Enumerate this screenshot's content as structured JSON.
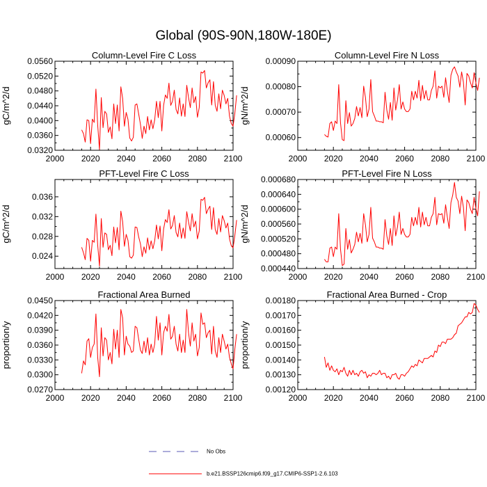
{
  "figure": {
    "title": "Global (90S-90N,180W-180E)",
    "series_color": "#ff0000",
    "obs_color": "#5a5ab4",
    "legend": [
      {
        "label": "No Obs",
        "style": "dashed"
      },
      {
        "label": "b.e21.BSSP126cmip6.f09_g17.CMIP6-SSP1-2.6.103",
        "style": "solid"
      }
    ]
  },
  "chart_data": [
    {
      "type": "line",
      "title": "Column-Level Fire C Loss",
      "ylabel": "gC/m^2/d",
      "xlabel": "",
      "xlim": [
        2000,
        2100
      ],
      "ylim": [
        0.032,
        0.056
      ],
      "xticks": [
        "2000",
        "2020",
        "2040",
        "2060",
        "2080",
        "2100"
      ],
      "yticks": [
        {
          "v": 0.032,
          "label": "0.0320"
        },
        {
          "v": 0.036,
          "label": "0.0360"
        },
        {
          "v": 0.04,
          "label": "0.0400"
        },
        {
          "v": 0.044,
          "label": "0.0440"
        },
        {
          "v": 0.048,
          "label": "0.0480"
        },
        {
          "v": 0.052,
          "label": "0.0520"
        },
        {
          "v": 0.056,
          "label": "0.0560"
        }
      ],
      "series": [
        {
          "name": "b.e21.BSSP126cmip6.f09_g17.CMIP6-SSP1-2.6.103",
          "x_start": 2015,
          "x_step": 1,
          "values": [
            0.0375,
            0.0365,
            0.0342,
            0.0402,
            0.04,
            0.0338,
            0.0404,
            0.0395,
            0.0485,
            0.0387,
            0.0322,
            0.0462,
            0.0381,
            0.0425,
            0.0418,
            0.0368,
            0.0383,
            0.0351,
            0.0445,
            0.0392,
            0.0442,
            0.0372,
            0.0491,
            0.046,
            0.0385,
            0.0422,
            0.0403,
            0.0353,
            0.0345,
            0.0355,
            0.0442,
            0.0445,
            0.0418,
            0.039,
            0.0352,
            0.0385,
            0.0365,
            0.0411,
            0.0375,
            0.0402,
            0.0378,
            0.0402,
            0.0452,
            0.0408,
            0.0452,
            0.0372,
            0.0441,
            0.0469,
            0.046,
            0.0501,
            0.0441,
            0.0452,
            0.0482,
            0.043,
            0.0418,
            0.0461,
            0.0412,
            0.0445,
            0.0411,
            0.0495,
            0.0462,
            0.0435,
            0.0488,
            0.0448,
            0.0465,
            0.0409,
            0.0435,
            0.0531,
            0.0528,
            0.0535,
            0.0488,
            0.0502,
            0.051,
            0.0442,
            0.0505,
            0.0441,
            0.0425,
            0.0472,
            0.0432,
            0.0482,
            0.0468,
            0.0445,
            0.046,
            0.0412,
            0.0392,
            0.0385,
            0.042,
            0.0468
          ]
        }
      ]
    },
    {
      "type": "line",
      "title": "Column-Level Fire N Loss",
      "ylabel": "gN/m^2/d",
      "xlabel": "",
      "xlim": [
        2000,
        2100
      ],
      "ylim": [
        0.00055,
        0.0009
      ],
      "xticks": [
        "2000",
        "2020",
        "2040",
        "2060",
        "2080",
        "2100"
      ],
      "yticks": [
        {
          "v": 0.0006,
          "label": "0.00060"
        },
        {
          "v": 0.0007,
          "label": "0.00070"
        },
        {
          "v": 0.0008,
          "label": "0.00080"
        },
        {
          "v": 0.0009,
          "label": "0.00090"
        }
      ],
      "series": [
        {
          "name": "b.e21.BSSP126cmip6.f09_g17.CMIP6-SSP1-2.6.103",
          "x_start": 2015,
          "x_step": 1,
          "values": [
            0.000612,
            0.000605,
            0.000602,
            0.000655,
            0.000662,
            0.000628,
            0.000665,
            0.000655,
            0.000808,
            0.000658,
            0.000592,
            0.000588,
            0.000745,
            0.000655,
            0.000698,
            0.000645,
            0.000655,
            0.000675,
            0.000722,
            0.000685,
            0.000718,
            0.000678,
            0.000802,
            0.000758,
            0.000682,
            0.000712,
            0.000828,
            0.000702,
            0.000685,
            0.000665,
            0.000665,
            0.000662,
            0.000662,
            0.000658,
            0.000778,
            0.000708,
            0.000672,
            0.000738,
            0.000668,
            0.000795,
            0.000708,
            0.000748,
            0.000808,
            0.000712,
            0.00074,
            0.000712,
            0.000702,
            0.000702,
            0.000712,
            0.000782,
            0.000748,
            0.000782,
            0.000755,
            0.000825,
            0.000745,
            0.000805,
            0.000752,
            0.000785,
            0.000748,
            0.000748,
            0.000785,
            0.000802,
            0.000862,
            0.000755,
            0.000802,
            0.000795,
            0.000802,
            0.000758,
            0.000835,
            0.000782,
            0.000738,
            0.000845,
            0.000868,
            0.000878,
            0.000858,
            0.000842,
            0.000798,
            0.000858,
            0.000818,
            0.000728,
            0.000852,
            0.000842,
            0.000815,
            0.000795,
            0.000855,
            0.000815,
            0.000785,
            0.000835
          ]
        }
      ]
    },
    {
      "type": "line",
      "title": "PFT-Level Fire C Loss",
      "ylabel": "gC/m^2/d",
      "xlabel": "",
      "xlim": [
        2000,
        2100
      ],
      "ylim": [
        0.0215,
        0.0395
      ],
      "xticks": [
        "2000",
        "2020",
        "2040",
        "2060",
        "2080",
        "2100"
      ],
      "yticks": [
        {
          "v": 0.024,
          "label": "0.024"
        },
        {
          "v": 0.028,
          "label": "0.028"
        },
        {
          "v": 0.032,
          "label": "0.032"
        },
        {
          "v": 0.036,
          "label": "0.036"
        }
      ],
      "series": [
        {
          "name": "b.e21.BSSP126cmip6.f09_g17.CMIP6-SSP1-2.6.103",
          "x_start": 2015,
          "x_step": 1,
          "values": [
            0.0258,
            0.0247,
            0.0233,
            0.0276,
            0.0272,
            0.023,
            0.0272,
            0.0268,
            0.0325,
            0.0262,
            0.022,
            0.0316,
            0.0258,
            0.0287,
            0.0284,
            0.0253,
            0.0262,
            0.0241,
            0.0299,
            0.0267,
            0.0298,
            0.0253,
            0.0331,
            0.031,
            0.026,
            0.0284,
            0.0272,
            0.0239,
            0.0236,
            0.0242,
            0.0299,
            0.0298,
            0.0279,
            0.0265,
            0.0239,
            0.0259,
            0.0246,
            0.0277,
            0.0253,
            0.0271,
            0.0255,
            0.0271,
            0.0303,
            0.0275,
            0.0301,
            0.0251,
            0.0295,
            0.0314,
            0.0308,
            0.0334,
            0.0295,
            0.0302,
            0.0322,
            0.0288,
            0.0279,
            0.0307,
            0.0276,
            0.0297,
            0.0276,
            0.033,
            0.0309,
            0.0291,
            0.0326,
            0.0299,
            0.0311,
            0.0275,
            0.0291,
            0.0355,
            0.0353,
            0.0359,
            0.0326,
            0.0335,
            0.0341,
            0.0294,
            0.0338,
            0.0294,
            0.0284,
            0.0316,
            0.0289,
            0.0322,
            0.0312,
            0.0297,
            0.0307,
            0.0275,
            0.0261,
            0.0257,
            0.0282,
            0.0313
          ]
        }
      ]
    },
    {
      "type": "line",
      "title": "PFT-Level Fire N Loss",
      "ylabel": "gN/m^2/d",
      "xlabel": "",
      "xlim": [
        2000,
        2100
      ],
      "ylim": [
        0.00044,
        0.00068
      ],
      "xticks": [
        "2000",
        "2020",
        "2040",
        "2060",
        "2080",
        "2100"
      ],
      "yticks": [
        {
          "v": 0.00044,
          "label": "0.000440"
        },
        {
          "v": 0.00048,
          "label": "0.000480"
        },
        {
          "v": 0.00052,
          "label": "0.000520"
        },
        {
          "v": 0.00056,
          "label": "0.000560"
        },
        {
          "v": 0.0006,
          "label": "0.000600"
        },
        {
          "v": 0.00064,
          "label": "0.000640"
        },
        {
          "v": 0.00068,
          "label": "0.000680"
        }
      ],
      "series": [
        {
          "name": "b.e21.BSSP126cmip6.f09_g17.CMIP6-SSP1-2.6.103",
          "x_start": 2015,
          "x_step": 1,
          "values": [
            0.000465,
            0.000458,
            0.000458,
            0.000495,
            0.000498,
            0.000472,
            0.000498,
            0.000492,
            0.000588,
            0.000492,
            0.000448,
            0.000452,
            0.000548,
            0.000492,
            0.000518,
            0.000482,
            0.000492,
            0.000505,
            0.000538,
            0.000512,
            0.000535,
            0.000508,
            0.000588,
            0.000558,
            0.000512,
            0.000532,
            0.000605,
            0.000522,
            0.000512,
            0.000498,
            0.000498,
            0.000495,
            0.000495,
            0.000492,
            0.000572,
            0.000528,
            0.000505,
            0.000548,
            0.000502,
            0.000582,
            0.000528,
            0.000552,
            0.000592,
            0.000532,
            0.000548,
            0.000532,
            0.000525,
            0.000525,
            0.000532,
            0.000578,
            0.000555,
            0.000578,
            0.000558,
            0.000605,
            0.000552,
            0.000592,
            0.000558,
            0.000578,
            0.000555,
            0.000555,
            0.000578,
            0.000588,
            0.000632,
            0.000558,
            0.000588,
            0.000585,
            0.000588,
            0.000562,
            0.000612,
            0.000578,
            0.000548,
            0.000618,
            0.000638,
            0.000672,
            0.000632,
            0.000622,
            0.000588,
            0.000635,
            0.000605,
            0.000542,
            0.000625,
            0.000618,
            0.0006,
            0.000588,
            0.000632,
            0.000602,
            0.000582,
            0.000648
          ]
        }
      ]
    },
    {
      "type": "line",
      "title": "Fractional Area Burned",
      "ylabel": "proportion/y",
      "xlabel": "",
      "xlim": [
        2000,
        2100
      ],
      "ylim": [
        0.027,
        0.045
      ],
      "xticks": [
        "2000",
        "2020",
        "2040",
        "2060",
        "2080",
        "2100"
      ],
      "yticks": [
        {
          "v": 0.027,
          "label": "0.0270"
        },
        {
          "v": 0.03,
          "label": "0.0300"
        },
        {
          "v": 0.033,
          "label": "0.0330"
        },
        {
          "v": 0.036,
          "label": "0.0360"
        },
        {
          "v": 0.039,
          "label": "0.0390"
        },
        {
          "v": 0.042,
          "label": "0.0420"
        },
        {
          "v": 0.045,
          "label": "0.0450"
        }
      ],
      "series": [
        {
          "name": "b.e21.BSSP126cmip6.f09_g17.CMIP6-SSP1-2.6.103",
          "x_start": 2015,
          "x_step": 1,
          "values": [
            0.0303,
            0.0328,
            0.032,
            0.0368,
            0.0373,
            0.0335,
            0.0355,
            0.0362,
            0.0423,
            0.0335,
            0.0296,
            0.0395,
            0.0338,
            0.0375,
            0.037,
            0.033,
            0.0345,
            0.0322,
            0.0392,
            0.0352,
            0.039,
            0.0335,
            0.0432,
            0.0415,
            0.034,
            0.0378,
            0.0362,
            0.0358,
            0.0345,
            0.0348,
            0.0398,
            0.0395,
            0.0372,
            0.035,
            0.0343,
            0.0368,
            0.0345,
            0.0375,
            0.034,
            0.0362,
            0.0345,
            0.0362,
            0.0418,
            0.037,
            0.0405,
            0.034,
            0.0385,
            0.0398,
            0.0388,
            0.0422,
            0.0372,
            0.0378,
            0.0398,
            0.0362,
            0.0348,
            0.0382,
            0.0345,
            0.037,
            0.0345,
            0.0432,
            0.0385,
            0.0358,
            0.0405,
            0.0368,
            0.0382,
            0.0338,
            0.0355,
            0.0425,
            0.0402,
            0.0405,
            0.0375,
            0.0385,
            0.039,
            0.0342,
            0.0398,
            0.0348,
            0.0335,
            0.0375,
            0.0345,
            0.0382,
            0.0368,
            0.0352,
            0.0362,
            0.0335,
            0.0322,
            0.0312,
            0.0352,
            0.0382
          ]
        }
      ]
    },
    {
      "type": "line",
      "title": "Fractional Area Burned - Crop",
      "ylabel": "proportion/y",
      "xlabel": "",
      "xlim": [
        2000,
        2100
      ],
      "ylim": [
        0.0012,
        0.0018
      ],
      "xticks": [
        "2000",
        "2020",
        "2040",
        "2060",
        "2080",
        "2100"
      ],
      "yticks": [
        {
          "v": 0.0012,
          "label": "0.00120"
        },
        {
          "v": 0.0013,
          "label": "0.00130"
        },
        {
          "v": 0.0014,
          "label": "0.00140"
        },
        {
          "v": 0.0015,
          "label": "0.00150"
        },
        {
          "v": 0.0016,
          "label": "0.00160"
        },
        {
          "v": 0.0017,
          "label": "0.00170"
        },
        {
          "v": 0.0018,
          "label": "0.00180"
        }
      ],
      "series": [
        {
          "name": "b.e21.BSSP126cmip6.f09_g17.CMIP6-SSP1-2.6.103",
          "x_start": 2015,
          "x_step": 1,
          "values": [
            0.00142,
            0.00135,
            0.00138,
            0.00133,
            0.00136,
            0.00133,
            0.00132,
            0.00134,
            0.0013,
            0.00133,
            0.00132,
            0.00135,
            0.00131,
            0.00129,
            0.00133,
            0.0013,
            0.00133,
            0.0013,
            0.00131,
            0.00129,
            0.00132,
            0.00133,
            0.00131,
            0.00132,
            0.00128,
            0.0013,
            0.00129,
            0.00131,
            0.00131,
            0.0013,
            0.00131,
            0.00133,
            0.0013,
            0.00131,
            0.00131,
            0.00128,
            0.00129,
            0.00127,
            0.0013,
            0.0013,
            0.00131,
            0.00128,
            0.00127,
            0.0013,
            0.0013,
            0.00129,
            0.00131,
            0.00132,
            0.00134,
            0.00136,
            0.00135,
            0.00137,
            0.00136,
            0.0014,
            0.00139,
            0.00138,
            0.00141,
            0.00141,
            0.00141,
            0.00142,
            0.00143,
            0.00142,
            0.00146,
            0.00145,
            0.0015,
            0.00149,
            0.00152,
            0.00152,
            0.00151,
            0.00154,
            0.00154,
            0.00154,
            0.00155,
            0.00157,
            0.00158,
            0.00163,
            0.00164,
            0.00165,
            0.00167,
            0.00169,
            0.00169,
            0.00172,
            0.00171,
            0.00172,
            0.00178,
            0.00177,
            0.00174,
            0.00172
          ]
        }
      ]
    }
  ]
}
